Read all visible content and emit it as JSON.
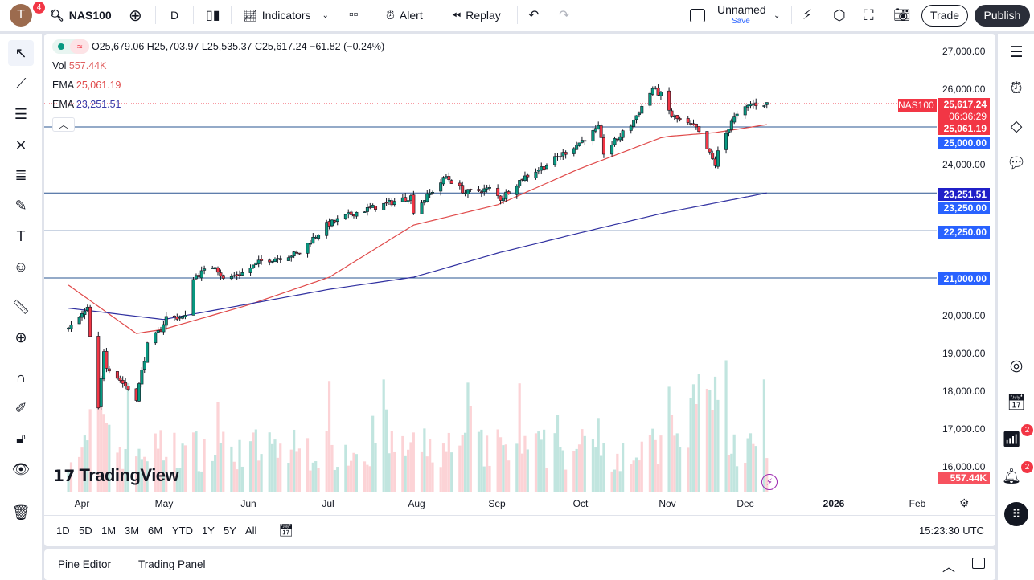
{
  "topbar": {
    "avatar_letter": "T",
    "avatar_badge": "4",
    "symbol": "NAS100",
    "interval": "D",
    "indicators": "Indicators",
    "alert": "Alert",
    "replay": "Replay",
    "layout_name": "Unnamed",
    "layout_save": "Save",
    "trade": "Trade",
    "publish": "Publish"
  },
  "legend": {
    "ohlc": "O25,679.06 H25,703.97 L25,535.37 C25,617.24 −61.82 (−0.24%)",
    "vol_label": "Vol",
    "vol_value": "557.44K",
    "ema1_label": "EMA",
    "ema1_value": "25,061.19",
    "ema2_label": "EMA",
    "ema2_value": "23,251.51"
  },
  "price_axis": {
    "ticks": [
      "27,000.00",
      "26,000.00",
      "24,000.00",
      "20,000.00",
      "19,000.00",
      "18,000.00",
      "17,000.00",
      "16,000.00"
    ],
    "labels": {
      "symbol": "NAS100",
      "last": "25,617.24",
      "countdown": "06:36:29",
      "ema50": "25,061.19",
      "h1": "25,000.00",
      "ema200": "23,251.51",
      "h2": "23,250.00",
      "h3": "22,250.00",
      "h4": "21,000.00",
      "vol": "557.44K"
    }
  },
  "time_axis": [
    "Apr",
    "May",
    "Jun",
    "Jul",
    "Aug",
    "Sep",
    "Oct",
    "Nov",
    "Dec",
    "2026",
    "Feb"
  ],
  "ranges": [
    "1D",
    "5D",
    "1M",
    "3M",
    "6M",
    "YTD",
    "1Y",
    "5Y",
    "All"
  ],
  "clock": "15:23:30 UTC",
  "bottom_tabs": [
    "Pine Editor",
    "Trading Panel"
  ],
  "watermark": "TradingView",
  "right_badges": [
    "2",
    "2"
  ],
  "colors": {
    "up": "#089981",
    "down": "#f23645",
    "ema_fast": "#e04a4a",
    "ema_slow": "#3030a0",
    "hline": "#2a5490",
    "accent": "#2962ff"
  },
  "chart_data": {
    "type": "candlestick",
    "symbol": "NAS100",
    "interval": "D",
    "horizontal_lines": [
      25000,
      23250,
      22250,
      21000
    ],
    "last_close": 25617.24,
    "close_anchors": [
      [
        "2025-03-27",
        19640
      ],
      [
        "2025-04-03",
        20170
      ],
      [
        "2025-04-04",
        19430
      ],
      [
        "2025-04-07",
        17500
      ],
      [
        "2025-04-09",
        19100
      ],
      [
        "2025-04-10",
        18680
      ],
      [
        "2025-04-21",
        17830
      ],
      [
        "2025-04-25",
        19210
      ],
      [
        "2025-04-30",
        19640
      ],
      [
        "2025-05-02",
        19960
      ],
      [
        "2025-05-09",
        19960
      ],
      [
        "2025-05-12",
        21020
      ],
      [
        "2025-05-20",
        21340
      ],
      [
        "2025-05-23",
        20960
      ],
      [
        "2025-05-30",
        21130
      ],
      [
        "2025-06-06",
        21450
      ],
      [
        "2025-06-13",
        21550
      ],
      [
        "2025-06-20",
        21660
      ],
      [
        "2025-06-24",
        21980
      ],
      [
        "2025-06-30",
        22400
      ],
      [
        "2025-07-10",
        22720
      ],
      [
        "2025-07-31",
        23150
      ],
      [
        "2025-08-01",
        22790
      ],
      [
        "2025-08-13",
        23680
      ],
      [
        "2025-08-20",
        23260
      ],
      [
        "2025-08-29",
        23360
      ],
      [
        "2025-09-02",
        23100
      ],
      [
        "2025-09-10",
        23640
      ],
      [
        "2025-09-19",
        24000
      ],
      [
        "2025-09-30",
        24530
      ],
      [
        "2025-10-08",
        24960
      ],
      [
        "2025-10-10",
        24320
      ],
      [
        "2025-10-20",
        25060
      ],
      [
        "2025-10-28",
        26020
      ],
      [
        "2025-10-31",
        25850
      ],
      [
        "2025-11-04",
        25280
      ],
      [
        "2025-11-07",
        25170
      ],
      [
        "2025-11-13",
        24960
      ],
      [
        "2025-11-20",
        24000
      ],
      [
        "2025-11-21",
        24320
      ],
      [
        "2025-11-26",
        25170
      ],
      [
        "2025-12-03",
        25600
      ],
      [
        "2025-12-09",
        25617.24
      ]
    ],
    "ema_fast_anchors": [
      [
        "2025-03-27",
        20810
      ],
      [
        "2025-04-21",
        19530
      ],
      [
        "2025-05-01",
        19640
      ],
      [
        "2025-06-01",
        20280
      ],
      [
        "2025-07-01",
        21020
      ],
      [
        "2025-08-01",
        22400
      ],
      [
        "2025-09-01",
        22940
      ],
      [
        "2025-10-01",
        23890
      ],
      [
        "2025-11-01",
        24740
      ],
      [
        "2025-11-20",
        24850
      ],
      [
        "2025-12-09",
        25061.19
      ]
    ],
    "ema_slow_anchors": [
      [
        "2025-03-27",
        20200
      ],
      [
        "2025-05-01",
        19900
      ],
      [
        "2025-07-01",
        20700
      ],
      [
        "2025-08-01",
        21020
      ],
      [
        "2025-09-01",
        21660
      ],
      [
        "2025-10-01",
        22190
      ],
      [
        "2025-11-01",
        22720
      ],
      [
        "2025-12-09",
        23251.51
      ]
    ],
    "ylim": [
      15500,
      27500
    ]
  }
}
